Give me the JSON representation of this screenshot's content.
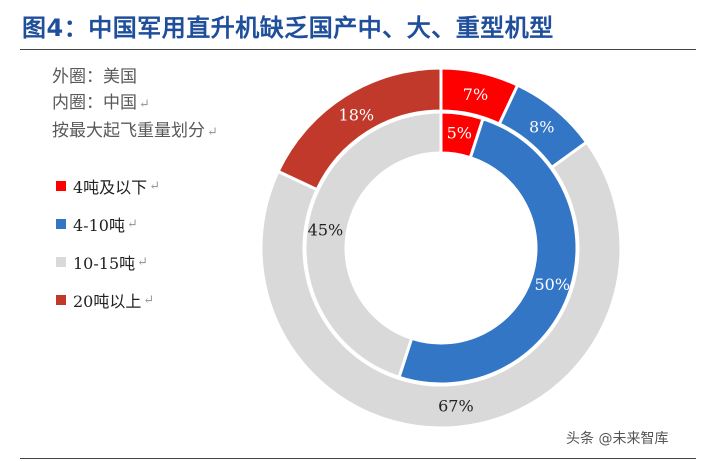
{
  "title": "图4：中国军用直升机缺乏国产中、大、重型机型",
  "notes": [
    "外圈：美国",
    "内圈：中国",
    "按最大起飞重量划分"
  ],
  "chart_data": {
    "type": "donut",
    "categories": [
      "4吨及以下",
      "4-10吨",
      "10-15吨",
      "20吨以上"
    ],
    "colors": [
      "#ff0000",
      "#3376c5",
      "#d9d9d9",
      "#c0392b"
    ],
    "series": [
      {
        "name": "外圈：美国",
        "ring": "outer",
        "values": [
          7,
          8,
          67,
          18
        ]
      },
      {
        "name": "内圈：中国",
        "ring": "inner",
        "values": [
          5,
          50,
          45,
          0
        ]
      }
    ]
  },
  "watermark": "头条 @未来智库"
}
